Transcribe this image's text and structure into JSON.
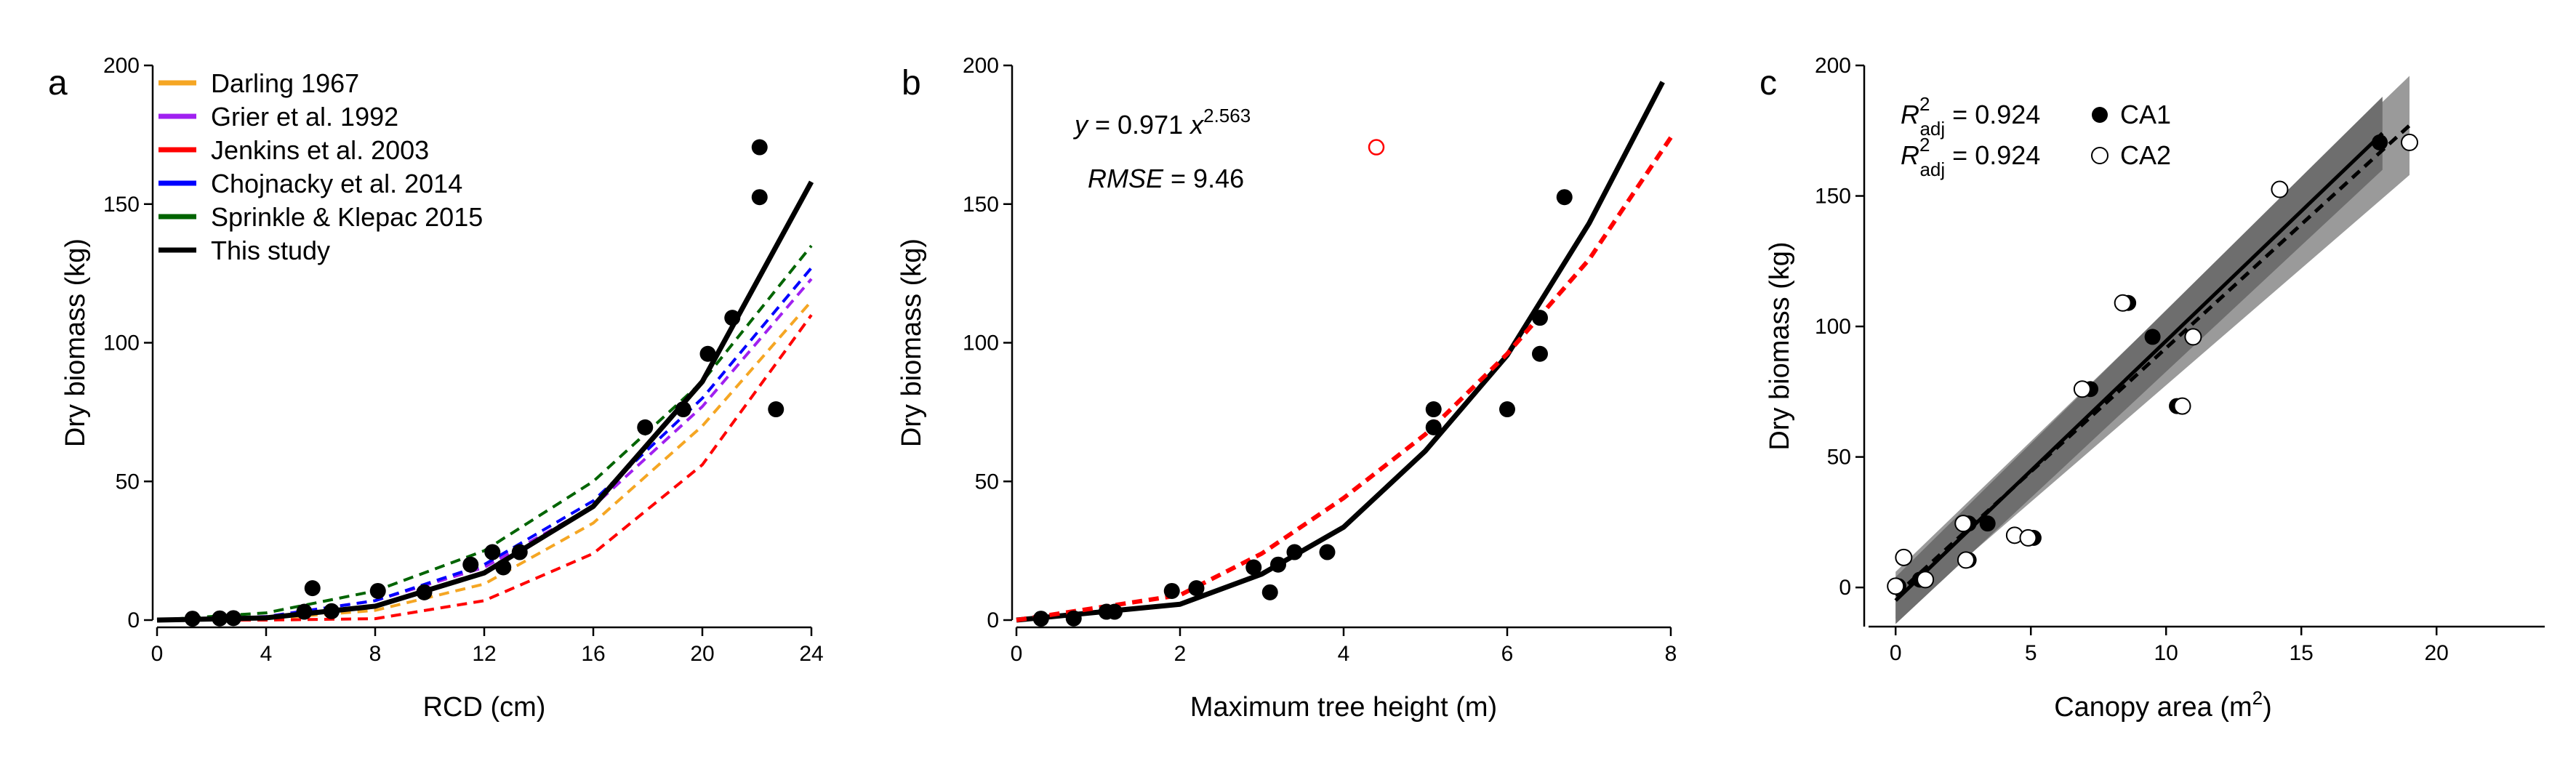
{
  "chart_data": [
    {
      "panel": "a",
      "type": "scatter",
      "xlabel": "RCD (cm)",
      "ylabel": "Dry biomass (kg)",
      "xlim": [
        0,
        24
      ],
      "ylim": [
        0,
        200
      ],
      "xticks": [
        0,
        4,
        8,
        12,
        16,
        20,
        24
      ],
      "yticks": [
        0,
        50,
        100,
        150,
        200
      ],
      "grid": false,
      "legend_position": "top-left",
      "points": [
        {
          "x": 1.3,
          "y": 0.5
        },
        {
          "x": 2.3,
          "y": 0.6
        },
        {
          "x": 2.8,
          "y": 0.7
        },
        {
          "x": 5.4,
          "y": 3
        },
        {
          "x": 5.7,
          "y": 11.5
        },
        {
          "x": 6.4,
          "y": 3.2
        },
        {
          "x": 8.1,
          "y": 10.5
        },
        {
          "x": 9.8,
          "y": 10
        },
        {
          "x": 11.5,
          "y": 20
        },
        {
          "x": 12.3,
          "y": 24.5
        },
        {
          "x": 12.7,
          "y": 19
        },
        {
          "x": 13.3,
          "y": 24.5
        },
        {
          "x": 17.9,
          "y": 69.5
        },
        {
          "x": 19.3,
          "y": 76
        },
        {
          "x": 20.2,
          "y": 96
        },
        {
          "x": 21.1,
          "y": 109
        },
        {
          "x": 22.1,
          "y": 170.5
        },
        {
          "x": 22.1,
          "y": 152.5
        },
        {
          "x": 22.7,
          "y": 76
        }
      ],
      "series": [
        {
          "name": "Darling 1967",
          "color": "#F5A623",
          "dash": true,
          "x": [
            0,
            4,
            8,
            12,
            16,
            20,
            24
          ],
          "values": [
            0,
            0.4,
            3.5,
            13,
            35,
            70,
            115
          ]
        },
        {
          "name": "Grier et al. 1992",
          "color": "#A020F0",
          "dash": true,
          "x": [
            0,
            4,
            8,
            12,
            16,
            20,
            24
          ],
          "values": [
            0,
            1.3,
            7,
            19,
            41,
            77,
            123
          ]
        },
        {
          "name": "Jenkins et al. 2003",
          "color": "#FF0000",
          "dash": true,
          "x": [
            0,
            4,
            8,
            12,
            16,
            20,
            24
          ],
          "values": [
            0,
            0,
            0.5,
            7,
            24,
            56,
            110
          ]
        },
        {
          "name": "Chojnacky et al. 2014",
          "color": "#0000FF",
          "dash": true,
          "x": [
            0,
            4,
            8,
            12,
            16,
            20,
            24
          ],
          "values": [
            0,
            1.2,
            7,
            20,
            43,
            80,
            127
          ]
        },
        {
          "name": "Sprinkle & Klepac 2015",
          "color": "#006400",
          "dash": true,
          "x": [
            0,
            4,
            8,
            12,
            16,
            20,
            24
          ],
          "values": [
            0,
            2.6,
            10.5,
            25,
            50,
            86,
            135
          ]
        },
        {
          "name": "This study",
          "color": "#000000",
          "dash": false,
          "x": [
            0,
            4,
            8,
            12,
            16,
            20,
            24
          ],
          "values": [
            0,
            0.8,
            5,
            17,
            41,
            86,
            158
          ]
        }
      ]
    },
    {
      "panel": "b",
      "type": "scatter",
      "xlabel": "Maximum tree height (m)",
      "ylabel": "Dry biomass (kg)",
      "xlim": [
        0,
        8
      ],
      "ylim": [
        0,
        200
      ],
      "xticks": [
        0,
        2,
        4,
        6,
        8
      ],
      "yticks": [
        0,
        50,
        100,
        150,
        200
      ],
      "grid": false,
      "equation": {
        "lhs": "y",
        "body": " = 0.971 ",
        "base": "x",
        "exponent": "2.563"
      },
      "rmse": {
        "label": "RMSE",
        "value": " = 9.46"
      },
      "points": [
        {
          "x": 0.3,
          "y": 0.5
        },
        {
          "x": 0.7,
          "y": 0.6
        },
        {
          "x": 1.1,
          "y": 3
        },
        {
          "x": 1.2,
          "y": 3
        },
        {
          "x": 1.9,
          "y": 10.5
        },
        {
          "x": 2.2,
          "y": 11.5
        },
        {
          "x": 2.9,
          "y": 19
        },
        {
          "x": 3.1,
          "y": 10
        },
        {
          "x": 3.2,
          "y": 20
        },
        {
          "x": 3.4,
          "y": 24.5
        },
        {
          "x": 3.8,
          "y": 24.5
        },
        {
          "x": 5.1,
          "y": 69.5
        },
        {
          "x": 5.1,
          "y": 76
        },
        {
          "x": 6.0,
          "y": 76
        },
        {
          "x": 6.4,
          "y": 96
        },
        {
          "x": 6.4,
          "y": 109
        },
        {
          "x": 6.7,
          "y": 152.5
        }
      ],
      "outlier": {
        "x": 4.4,
        "y": 170.5,
        "color": "#FF0000"
      },
      "series": [
        {
          "color": "#000000",
          "dash": false,
          "x": [
            0,
            2,
            3,
            4,
            5,
            6,
            7,
            7.9
          ],
          "values": [
            0,
            5.7,
            16.6,
            33.5,
            61,
            95.5,
            143,
            194
          ]
        },
        {
          "color": "#FF0000",
          "dash": true,
          "x": [
            0,
            2,
            3,
            4,
            5,
            6,
            7,
            8
          ],
          "values": [
            0,
            9,
            24,
            44,
            67,
            96,
            130,
            174
          ]
        }
      ]
    },
    {
      "panel": "c",
      "type": "scatter",
      "xlabel": "Canopy area (m",
      "xlabel_sup": "2",
      "xlabel_end": ")",
      "ylabel": "Dry biomass (kg)",
      "xlim": [
        -1,
        24
      ],
      "ylim": [
        -15,
        200
      ],
      "xticks": [
        0,
        5,
        10,
        15,
        20
      ],
      "yticks": [
        0,
        50,
        100,
        150,
        200
      ],
      "grid": false,
      "legend": [
        {
          "name": "CA1",
          "r2_sym": "R",
          "r2_sup": "2",
          "r2_sub": "adj",
          "r2_value": " = 0.924",
          "marker": "filled"
        },
        {
          "name": "CA2",
          "r2_sym": "R",
          "r2_sup": "2",
          "r2_sub": "adj",
          "r2_value": " = 0.924",
          "marker": "open"
        }
      ],
      "points_ca1": [
        {
          "x": 0.1,
          "y": 0.5
        },
        {
          "x": 0.9,
          "y": 3
        },
        {
          "x": 2.7,
          "y": 24.5
        },
        {
          "x": 2.7,
          "y": 10.5
        },
        {
          "x": 3.4,
          "y": 24.5
        },
        {
          "x": 5.1,
          "y": 19
        },
        {
          "x": 8.6,
          "y": 109
        },
        {
          "x": 7.2,
          "y": 76
        },
        {
          "x": 10.4,
          "y": 69.5
        },
        {
          "x": 9.5,
          "y": 96
        },
        {
          "x": 17.9,
          "y": 170.5
        }
      ],
      "points_ca2": [
        {
          "x": 0,
          "y": 0.5
        },
        {
          "x": 0.3,
          "y": 11.5
        },
        {
          "x": 1.1,
          "y": 3
        },
        {
          "x": 2.6,
          "y": 10.5
        },
        {
          "x": 2.5,
          "y": 24.5
        },
        {
          "x": 4.4,
          "y": 20
        },
        {
          "x": 4.9,
          "y": 19
        },
        {
          "x": 6.9,
          "y": 76
        },
        {
          "x": 8.4,
          "y": 109
        },
        {
          "x": 10.6,
          "y": 69.5
        },
        {
          "x": 11,
          "y": 96
        },
        {
          "x": 14.2,
          "y": 152.5
        },
        {
          "x": 19,
          "y": 170.5
        }
      ],
      "fit_ca1": {
        "x": [
          0,
          18
        ],
        "values": [
          -5,
          174
        ],
        "ci_low": [
          -14,
          160
        ],
        "ci_high": [
          4,
          188
        ]
      },
      "fit_ca2": {
        "x": [
          0,
          19
        ],
        "values": [
          -3,
          177
        ],
        "ci_low": [
          -12,
          158
        ],
        "ci_high": [
          6,
          196
        ]
      }
    }
  ]
}
